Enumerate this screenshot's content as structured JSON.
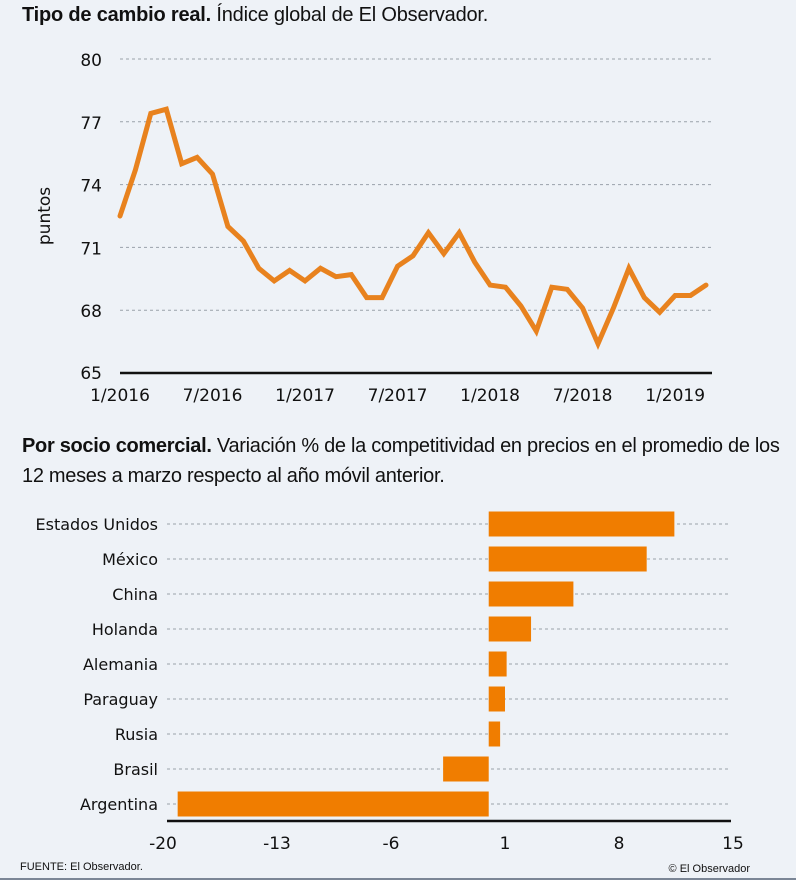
{
  "header": {
    "title_bold": "Tipo de cambio real.",
    "title_rest": " Índice global de El Observador."
  },
  "section2": {
    "title_bold": "Por socio comercial.",
    "title_rest": " Variación % de la competitividad en precios en el promedio de los 12 meses a marzo respecto al año móvil anterior."
  },
  "footer": {
    "source": "FUENTE: El Observador.",
    "copyright": "© El Observador"
  },
  "colors": {
    "line": "#e8821e",
    "bar": "#f07d00",
    "grid": "#9aa1aa",
    "axis": "#111111",
    "background": "#eef2f7"
  },
  "chart_data": [
    {
      "type": "line",
      "title": "Tipo de cambio real. Índice global de El Observador.",
      "xlabel": "",
      "ylabel": "puntos",
      "ylim": [
        65,
        80
      ],
      "yticks": [
        65,
        68,
        71,
        74,
        77,
        80
      ],
      "xtick_labels": [
        "1/2016",
        "7/2016",
        "1/2017",
        "7/2017",
        "1/2018",
        "7/2018",
        "1/2019"
      ],
      "xtick_index": [
        0,
        6,
        12,
        18,
        24,
        30,
        36
      ],
      "grid": true,
      "series": [
        {
          "name": "Índice",
          "start": "1/2016",
          "frequency": "monthly",
          "values": [
            72.5,
            74.7,
            77.4,
            77.6,
            75.0,
            75.3,
            74.5,
            72.0,
            71.3,
            70.0,
            69.4,
            69.9,
            69.4,
            70.0,
            69.6,
            69.7,
            68.6,
            68.6,
            70.1,
            70.6,
            71.7,
            70.7,
            71.7,
            70.3,
            69.2,
            69.1,
            68.2,
            67.0,
            69.1,
            69.0,
            68.1,
            66.4,
            68.1,
            70.0,
            68.6,
            67.9,
            68.7,
            68.7,
            69.2
          ]
        }
      ]
    },
    {
      "type": "bar",
      "orientation": "horizontal",
      "title": "Por socio comercial.",
      "categories": [
        "Estados Unidos",
        "México",
        "China",
        "Holanda",
        "Alemania",
        "Paraguay",
        "Rusia",
        "Brasil",
        "Argentina"
      ],
      "values": [
        11.4,
        9.7,
        5.2,
        2.6,
        1.1,
        1.0,
        0.7,
        -2.8,
        -19.1
      ],
      "xlim": [
        -20,
        15
      ],
      "xticks": [
        -20,
        -13,
        -6,
        1,
        8,
        15
      ],
      "xlabel": "",
      "ylabel": "",
      "grid": true
    }
  ]
}
